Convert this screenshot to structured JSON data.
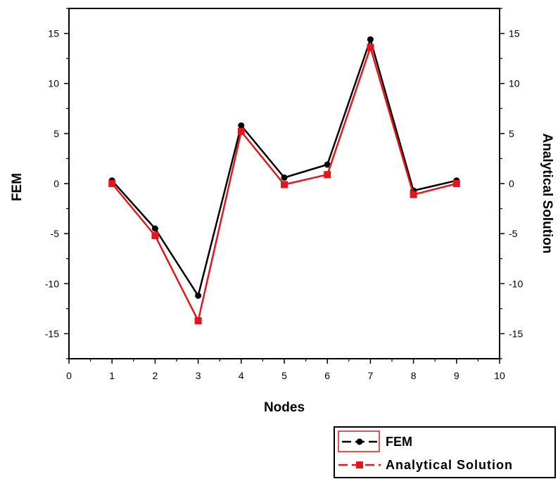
{
  "chart_data": {
    "type": "line",
    "xlabel": "Nodes",
    "ylabel_left": "FEM",
    "ylabel_right": "Analytical Solution",
    "xlim": [
      0,
      10
    ],
    "ylim": [
      -17.5,
      17.5
    ],
    "x_ticks": [
      0,
      1,
      2,
      3,
      4,
      5,
      6,
      7,
      8,
      9,
      10
    ],
    "y_ticks": [
      -15,
      -10,
      -5,
      0,
      5,
      10,
      15
    ],
    "grid": false,
    "legend_position": "bottom-right, outside plot",
    "x": [
      1,
      2,
      3,
      4,
      5,
      6,
      7,
      8,
      9
    ],
    "series": [
      {
        "name": "FEM",
        "color": "#000000",
        "marker": "circle",
        "values": [
          0.3,
          -4.5,
          -11.2,
          5.8,
          0.6,
          1.9,
          14.4,
          -0.7,
          0.3
        ]
      },
      {
        "name": "Analytical Solution",
        "color": "#e8141c",
        "marker": "square",
        "values": [
          0.0,
          -5.2,
          -13.7,
          5.2,
          -0.1,
          0.9,
          13.6,
          -1.1,
          0.0
        ]
      }
    ]
  }
}
